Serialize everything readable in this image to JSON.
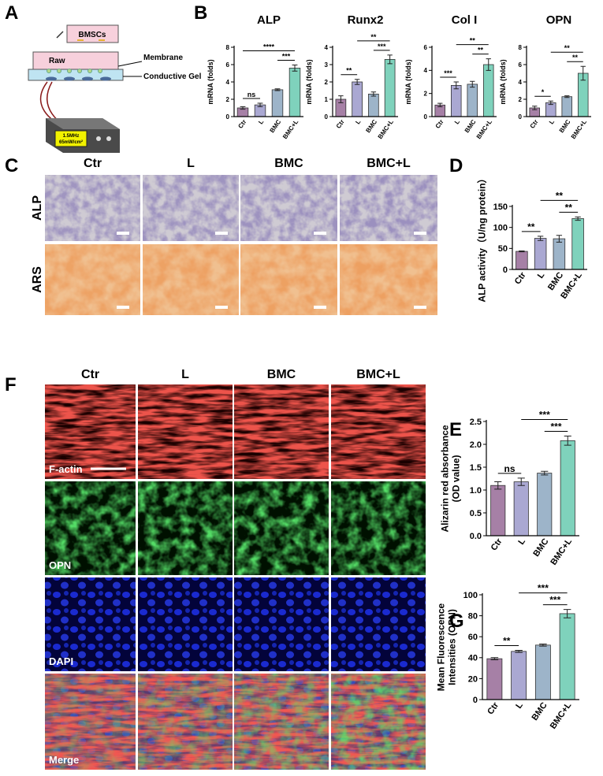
{
  "panels": [
    "A",
    "B",
    "C",
    "D",
    "E",
    "F",
    "G"
  ],
  "schematic": {
    "top_dish": "BMSCs",
    "bottom_dish": "Raw",
    "membrane": "Membrane",
    "gel": "Conductive Gel",
    "device": [
      "1.5MHz",
      "65mW/cm²"
    ]
  },
  "stain_panel": {
    "columns": [
      "Ctr",
      "L",
      "BMC",
      "BMC+L"
    ],
    "rows": [
      "ALP",
      "ARS"
    ]
  },
  "fluor_panel": {
    "columns": [
      "Ctr",
      "L",
      "BMC",
      "BMC+L"
    ],
    "rows": [
      "F-actin",
      "OPN",
      "DAPI",
      "Merge"
    ]
  },
  "chart_data": [
    {
      "type": "bar",
      "title": "ALP",
      "ylabel": [
        "mRNA (folds)"
      ],
      "categories": [
        "Ctr",
        "L",
        "BMC",
        "BMC+L"
      ],
      "values": [
        1.0,
        1.35,
        3.1,
        5.6
      ],
      "errors": [
        0.15,
        0.2,
        0.1,
        0.35
      ],
      "colors": [
        "#a680a6",
        "#aaa8d2",
        "#9db4c9",
        "#7fd2bc"
      ],
      "ylim": [
        0,
        8
      ],
      "yticks": [
        0,
        2,
        4,
        6,
        8
      ],
      "annotations": [
        {
          "between": [
            "Ctr",
            "L"
          ],
          "label": "ns"
        },
        {
          "between": [
            "BMC",
            "BMC+L"
          ],
          "label": "***"
        },
        {
          "between": [
            "Ctr",
            "BMC+L"
          ],
          "label": "****"
        }
      ]
    },
    {
      "type": "bar",
      "title": "Runx2",
      "ylabel": [
        "mRNA (folds)"
      ],
      "categories": [
        "Ctr",
        "L",
        "BMC",
        "BMC+L"
      ],
      "values": [
        1.0,
        2.0,
        1.3,
        3.3
      ],
      "errors": [
        0.2,
        0.15,
        0.12,
        0.25
      ],
      "colors": [
        "#a680a6",
        "#aaa8d2",
        "#9db4c9",
        "#7fd2bc"
      ],
      "ylim": [
        0,
        4
      ],
      "yticks": [
        0,
        1,
        2,
        3,
        4
      ],
      "annotations": [
        {
          "between": [
            "Ctr",
            "L"
          ],
          "label": "**"
        },
        {
          "between": [
            "BMC",
            "BMC+L"
          ],
          "label": "***"
        },
        {
          "between": [
            "L",
            "BMC+L"
          ],
          "label": "**"
        }
      ]
    },
    {
      "type": "bar",
      "title": "Col I",
      "ylabel": [
        "mRNA (folds)"
      ],
      "categories": [
        "Ctr",
        "L",
        "BMC",
        "BMC+L"
      ],
      "values": [
        1.0,
        2.7,
        2.8,
        4.5
      ],
      "errors": [
        0.15,
        0.3,
        0.25,
        0.5
      ],
      "colors": [
        "#a680a6",
        "#aaa8d2",
        "#9db4c9",
        "#7fd2bc"
      ],
      "ylim": [
        0,
        6
      ],
      "yticks": [
        0,
        2,
        4,
        6
      ],
      "annotations": [
        {
          "between": [
            "Ctr",
            "L"
          ],
          "label": "***"
        },
        {
          "between": [
            "BMC",
            "BMC+L"
          ],
          "label": "**"
        },
        {
          "between": [
            "L",
            "BMC+L"
          ],
          "label": "**"
        }
      ]
    },
    {
      "type": "bar",
      "title": "OPN",
      "ylabel": [
        "mRNA (folds)"
      ],
      "categories": [
        "Ctr",
        "L",
        "BMC",
        "BMC+L"
      ],
      "values": [
        1.0,
        1.6,
        2.3,
        5.0
      ],
      "errors": [
        0.2,
        0.2,
        0.1,
        0.8
      ],
      "colors": [
        "#a680a6",
        "#aaa8d2",
        "#9db4c9",
        "#7fd2bc"
      ],
      "ylim": [
        0,
        8
      ],
      "yticks": [
        0,
        2,
        4,
        6,
        8
      ],
      "annotations": [
        {
          "between": [
            "Ctr",
            "L"
          ],
          "label": "*"
        },
        {
          "between": [
            "BMC",
            "BMC+L"
          ],
          "label": "**"
        },
        {
          "between": [
            "L",
            "BMC+L"
          ],
          "label": "**"
        }
      ]
    },
    {
      "type": "bar",
      "ylabel": [
        "ALP activity（U/ng protein）"
      ],
      "categories": [
        "Ctr",
        "L",
        "BMC",
        "BMC+L"
      ],
      "values": [
        43,
        74,
        73,
        121
      ],
      "errors": [
        1,
        5,
        8,
        4
      ],
      "colors": [
        "#a680a6",
        "#aaa8d2",
        "#9db4c9",
        "#7fd2bc"
      ],
      "ylim": [
        0,
        150
      ],
      "yticks": [
        0,
        50,
        100,
        150
      ],
      "annotations": [
        {
          "between": [
            "Ctr",
            "L"
          ],
          "label": "**"
        },
        {
          "between": [
            "BMC",
            "BMC+L"
          ],
          "label": "**"
        },
        {
          "between": [
            "L",
            "BMC+L"
          ],
          "label": "**"
        }
      ]
    },
    {
      "type": "bar",
      "ylabel": [
        "Alizarin red absorbance",
        "(OD value)"
      ],
      "categories": [
        "Ctr",
        "L",
        "BMC",
        "BMC+L"
      ],
      "values": [
        1.1,
        1.18,
        1.37,
        2.08
      ],
      "errors": [
        0.08,
        0.08,
        0.04,
        0.1
      ],
      "colors": [
        "#a680a6",
        "#aaa8d2",
        "#9db4c9",
        "#7fd2bc"
      ],
      "ylim": [
        0,
        2.5
      ],
      "yticks": [
        {
          "value": 0,
          "label": "0.0"
        },
        0.5,
        {
          "value": 1,
          "label": "1.0"
        },
        1.5,
        {
          "value": 2,
          "label": "2.0"
        },
        2.5
      ],
      "annotations": [
        {
          "between": [
            "Ctr",
            "L"
          ],
          "label": "ns"
        },
        {
          "between": [
            "BMC",
            "BMC+L"
          ],
          "label": "***"
        },
        {
          "between": [
            "L",
            "BMC+L"
          ],
          "label": "***"
        }
      ]
    },
    {
      "type": "bar",
      "ylabel": [
        "Mean Fluorescence",
        "Intensities (OPN)"
      ],
      "categories": [
        "Ctr",
        "L",
        "BMC",
        "BMC+L"
      ],
      "values": [
        39,
        46,
        52,
        82
      ],
      "errors": [
        1,
        1,
        1,
        4
      ],
      "colors": [
        "#a680a6",
        "#aaa8d2",
        "#9db4c9",
        "#7fd2bc"
      ],
      "ylim": [
        0,
        100
      ],
      "yticks": [
        0,
        20,
        40,
        60,
        80,
        100
      ],
      "annotations": [
        {
          "between": [
            "Ctr",
            "L"
          ],
          "label": "**"
        },
        {
          "between": [
            "BMC",
            "BMC+L"
          ],
          "label": "***"
        },
        {
          "between": [
            "L",
            "BMC+L"
          ],
          "label": "***"
        }
      ]
    }
  ]
}
